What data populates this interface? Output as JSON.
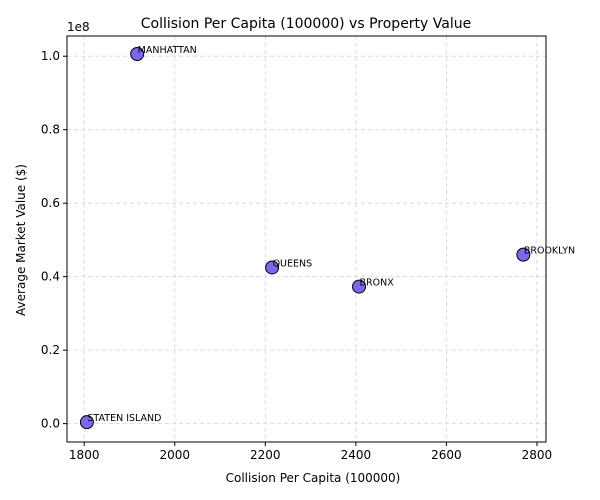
{
  "chart_data": {
    "type": "scatter",
    "title": "Collision Per Capita (100000) vs Property Value",
    "xlabel": "Collision Per Capita (100000)",
    "ylabel": "Average Market Value ($)",
    "y_offset_text": "1e8",
    "xlim": [
      1762,
      2820
    ],
    "ylim": [
      -0.05,
      1.055
    ],
    "x_ticks": [
      1800,
      2000,
      2200,
      2400,
      2600,
      2800
    ],
    "x_tick_labels": [
      "1800",
      "2000",
      "2200",
      "2400",
      "2600",
      "2800"
    ],
    "y_ticks": [
      0.0,
      0.2,
      0.4,
      0.6,
      0.8,
      1.0
    ],
    "y_tick_labels": [
      "0.0",
      "0.2",
      "0.4",
      "0.6",
      "0.8",
      "1.0"
    ],
    "y_scale": "1e8",
    "grid": true,
    "marker_color": "#7b68ee",
    "marker_edge": "#000000",
    "points": [
      {
        "label": "MANHATTAN",
        "x": 1917,
        "y": 1.006
      },
      {
        "label": "QUEENS",
        "x": 2215,
        "y": 0.425
      },
      {
        "label": "BRONX",
        "x": 2407,
        "y": 0.373
      },
      {
        "label": "BROOKLYN",
        "x": 2770,
        "y": 0.46
      },
      {
        "label": "STATEN ISLAND",
        "x": 1806,
        "y": 0.004
      }
    ]
  }
}
